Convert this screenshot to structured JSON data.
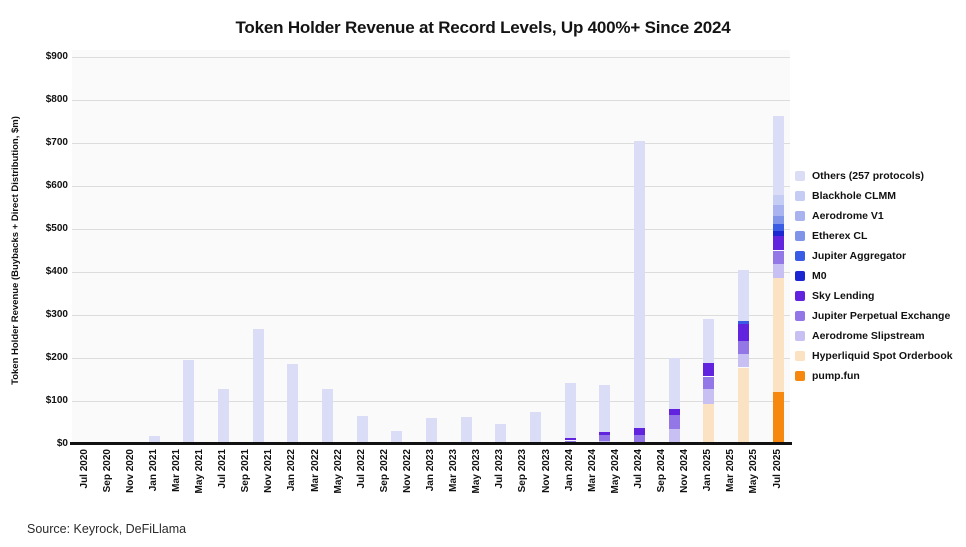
{
  "source": "Source: Keyrock, DeFiLlama",
  "chart_data": {
    "type": "bar",
    "stacked": true,
    "title": "Token Holder Revenue at Record Levels, Up 400%+ Since 2024",
    "ylabel": "Token Holder Revenue (Buybacks + Direct Distribution, $m)",
    "ylim": [
      0,
      900
    ],
    "y_tick_step": 100,
    "y_tick_prefix": "$",
    "grid": true,
    "legend_position": "right",
    "x_tick_labels": [
      "Jul 2020",
      "Sep 2020",
      "Nov 2020",
      "Jan 2021",
      "Mar 2021",
      "May 2021",
      "Jul 2021",
      "Sep 2021",
      "Nov 2021",
      "Jan 2022",
      "Mar 2022",
      "May 2022",
      "Jul 2022",
      "Sep 2022",
      "Nov 2022",
      "Jan 2023",
      "Mar 2023",
      "May 2023",
      "Jul 2023",
      "Sep 2023",
      "Nov 2023",
      "Jan 2024",
      "Mar 2024",
      "May 2024",
      "Jul 2024",
      "Sep 2024",
      "Nov 2024",
      "Jan 2025",
      "Mar 2025",
      "May 2025",
      "Jul 2025"
    ],
    "categories": [
      "Jan 2021",
      "Apr 2021",
      "Jul 2021",
      "Oct 2021",
      "Jan 2022",
      "Apr 2022",
      "Jul 2022",
      "Oct 2022",
      "Jan 2023",
      "Apr 2023",
      "Jul 2023",
      "Oct 2023",
      "Jan 2024",
      "Apr 2024",
      "Jul 2024",
      "Oct 2024",
      "Jan 2025",
      "Apr 2025",
      "Jul 2025"
    ],
    "bar_month_offsets": [
      6,
      9,
      12,
      15,
      18,
      21,
      24,
      27,
      30,
      33,
      36,
      39,
      42,
      45,
      48,
      51,
      54,
      57,
      60
    ],
    "series": [
      {
        "name": "Others (257 protocols)",
        "color": "#dbddf7",
        "values": [
          18,
          195,
          128,
          268,
          187,
          127,
          66,
          31,
          60,
          64,
          46,
          75,
          129,
          111,
          667,
          118,
          103,
          120,
          182
        ]
      },
      {
        "name": "Blackhole CLMM",
        "color": "#c6cdf4",
        "values": [
          0,
          0,
          0,
          0,
          0,
          0,
          0,
          0,
          0,
          0,
          0,
          0,
          0,
          0,
          0,
          0,
          0,
          0,
          24
        ]
      },
      {
        "name": "Aerodrome V1",
        "color": "#a8b3ef",
        "values": [
          0,
          0,
          0,
          0,
          0,
          0,
          0,
          0,
          0,
          0,
          0,
          0,
          0,
          0,
          0,
          0,
          0,
          0,
          26
        ]
      },
      {
        "name": "Etherex CL",
        "color": "#8094e9",
        "values": [
          0,
          0,
          0,
          0,
          0,
          0,
          0,
          0,
          0,
          0,
          0,
          0,
          0,
          0,
          0,
          0,
          0,
          0,
          19
        ]
      },
      {
        "name": "Jupiter Aggregator",
        "color": "#3a5ce4",
        "values": [
          0,
          0,
          0,
          0,
          0,
          0,
          0,
          0,
          0,
          0,
          0,
          0,
          0,
          0,
          0,
          0,
          0,
          6,
          15
        ]
      },
      {
        "name": "M0",
        "color": "#1c26d0",
        "values": [
          0,
          0,
          0,
          0,
          0,
          0,
          0,
          0,
          0,
          0,
          0,
          0,
          0,
          0,
          0,
          0,
          0,
          0,
          12
        ]
      },
      {
        "name": "Sky Lending",
        "color": "#6123dd",
        "values": [
          0,
          0,
          0,
          0,
          0,
          0,
          0,
          0,
          0,
          0,
          0,
          0,
          5,
          7,
          16,
          13,
          31,
          39,
          34
        ]
      },
      {
        "name": "Jupiter Perpetual Exchange",
        "color": "#9477e7",
        "values": [
          0,
          0,
          0,
          0,
          0,
          0,
          0,
          0,
          0,
          0,
          0,
          0,
          8,
          12,
          22,
          34,
          30,
          30,
          31
        ]
      },
      {
        "name": "Aerodrome Slipstream",
        "color": "#c8bff2",
        "values": [
          0,
          0,
          0,
          0,
          0,
          0,
          0,
          0,
          0,
          0,
          0,
          0,
          0,
          8,
          0,
          34,
          33,
          32,
          32
        ]
      },
      {
        "name": "Hyperliquid Spot Orderbook",
        "color": "#fbe2c3",
        "values": [
          0,
          0,
          0,
          0,
          0,
          0,
          0,
          0,
          0,
          0,
          0,
          0,
          0,
          0,
          0,
          0,
          94,
          178,
          266
        ]
      },
      {
        "name": "pump.fun",
        "color": "#f6870f",
        "values": [
          0,
          0,
          0,
          0,
          0,
          0,
          0,
          0,
          0,
          0,
          0,
          0,
          0,
          0,
          0,
          0,
          0,
          0,
          121
        ]
      }
    ]
  }
}
